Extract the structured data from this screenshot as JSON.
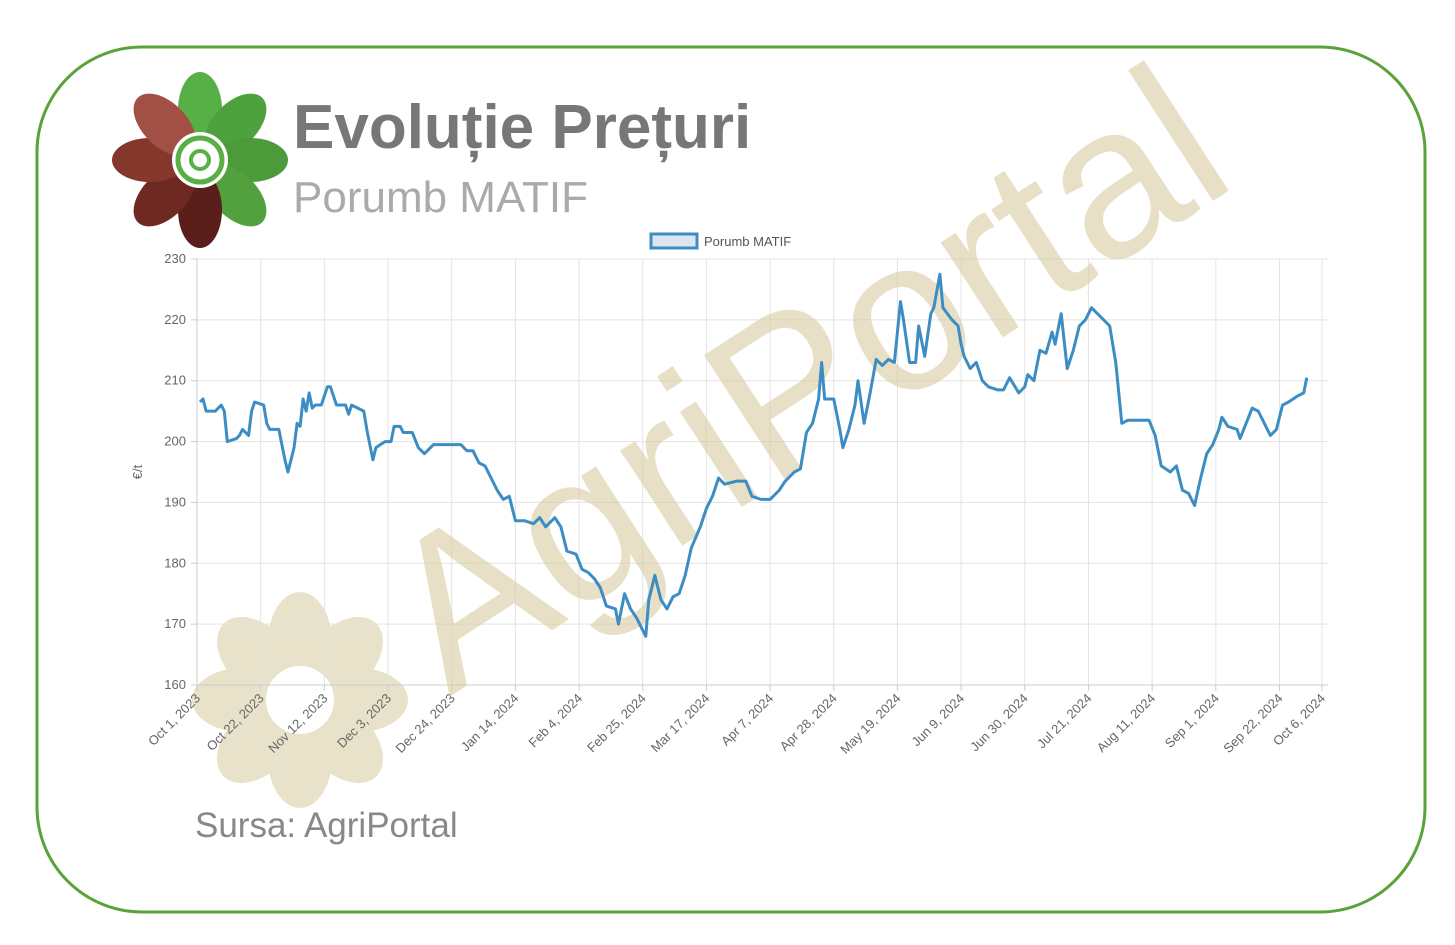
{
  "header": {
    "title": "Evoluție Prețuri",
    "subtitle": "Porumb MATIF"
  },
  "watermark": "AgriPortal",
  "source": "Sursa: AgriPortal",
  "chart_data": {
    "type": "line",
    "y_label": "€/t",
    "grid": true,
    "legend": "top",
    "xlim": [
      "2023-10-01",
      "2024-10-08"
    ],
    "ylim": [
      160,
      230
    ],
    "yticks": [
      160,
      170,
      180,
      190,
      200,
      210,
      220,
      230
    ],
    "xticks": [
      {
        "value": "2023-10-01",
        "label": "Oct 1, 2023"
      },
      {
        "value": "2023-10-22",
        "label": "Oct 22, 2023"
      },
      {
        "value": "2023-11-12",
        "label": "Nov 12, 2023"
      },
      {
        "value": "2023-12-03",
        "label": "Dec 3, 2023"
      },
      {
        "value": "2023-12-24",
        "label": "Dec 24, 2023"
      },
      {
        "value": "2024-01-14",
        "label": "Jan 14, 2024"
      },
      {
        "value": "2024-02-04",
        "label": "Feb 4, 2024"
      },
      {
        "value": "2024-02-25",
        "label": "Feb 25, 2024"
      },
      {
        "value": "2024-03-17",
        "label": "Mar 17, 2024"
      },
      {
        "value": "2024-04-07",
        "label": "Apr 7, 2024"
      },
      {
        "value": "2024-04-28",
        "label": "Apr 28, 2024"
      },
      {
        "value": "2024-05-19",
        "label": "May 19, 2024"
      },
      {
        "value": "2024-06-09",
        "label": "Jun 9, 2024"
      },
      {
        "value": "2024-06-30",
        "label": "Jun 30, 2024"
      },
      {
        "value": "2024-07-21",
        "label": "Jul 21, 2024"
      },
      {
        "value": "2024-08-11",
        "label": "Aug 11, 2024"
      },
      {
        "value": "2024-09-01",
        "label": "Sep 1, 2024"
      },
      {
        "value": "2024-09-22",
        "label": "Sep 22, 2024"
      },
      {
        "value": "2024-10-06",
        "label": "Oct 6, 2024"
      }
    ],
    "x": [
      "2023-10-02",
      "2023-10-03",
      "2023-10-04",
      "2023-10-07",
      "2023-10-09",
      "2023-10-10",
      "2023-10-11",
      "2023-10-14",
      "2023-10-15",
      "2023-10-16",
      "2023-10-18",
      "2023-10-19",
      "2023-10-20",
      "2023-10-23",
      "2023-10-24",
      "2023-10-25",
      "2023-10-28",
      "2023-10-30",
      "2023-10-31",
      "2023-11-02",
      "2023-11-03",
      "2023-11-04",
      "2023-11-05",
      "2023-11-06",
      "2023-11-07",
      "2023-11-08",
      "2023-11-09",
      "2023-11-11",
      "2023-11-13",
      "2023-11-14",
      "2023-11-16",
      "2023-11-19",
      "2023-11-20",
      "2023-11-21",
      "2023-11-23",
      "2023-11-25",
      "2023-11-26",
      "2023-11-28",
      "2023-11-29",
      "2023-12-02",
      "2023-12-04",
      "2023-12-05",
      "2023-12-07",
      "2023-12-08",
      "2023-12-11",
      "2023-12-13",
      "2023-12-15",
      "2023-12-18",
      "2023-12-22",
      "2023-12-27",
      "2023-12-29",
      "2023-12-31",
      "2024-01-02",
      "2024-01-04",
      "2024-01-06",
      "2024-01-08",
      "2024-01-10",
      "2024-01-12",
      "2024-01-14",
      "2024-01-17",
      "2024-01-20",
      "2024-01-22",
      "2024-01-24",
      "2024-01-27",
      "2024-01-29",
      "2024-01-31",
      "2024-02-03",
      "2024-02-05",
      "2024-02-07",
      "2024-02-09",
      "2024-02-11",
      "2024-02-13",
      "2024-02-16",
      "2024-02-17",
      "2024-02-19",
      "2024-02-21",
      "2024-02-23",
      "2024-02-26",
      "2024-02-27",
      "2024-02-29",
      "2024-03-02",
      "2024-03-04",
      "2024-03-06",
      "2024-03-08",
      "2024-03-10",
      "2024-03-12",
      "2024-03-15",
      "2024-03-17",
      "2024-03-19",
      "2024-03-21",
      "2024-03-23",
      "2024-03-27",
      "2024-03-30",
      "2024-04-01",
      "2024-04-04",
      "2024-04-07",
      "2024-04-10",
      "2024-04-12",
      "2024-04-15",
      "2024-04-17",
      "2024-04-19",
      "2024-04-21",
      "2024-04-23",
      "2024-04-24",
      "2024-04-25",
      "2024-04-28",
      "2024-04-30",
      "2024-05-01",
      "2024-05-03",
      "2024-05-05",
      "2024-05-06",
      "2024-05-08",
      "2024-05-10",
      "2024-05-12",
      "2024-05-14",
      "2024-05-16",
      "2024-05-18",
      "2024-05-20",
      "2024-05-21",
      "2024-05-23",
      "2024-05-25",
      "2024-05-26",
      "2024-05-28",
      "2024-05-30",
      "2024-05-31",
      "2024-06-02",
      "2024-06-03",
      "2024-06-06",
      "2024-06-08",
      "2024-06-09",
      "2024-06-10",
      "2024-06-12",
      "2024-06-14",
      "2024-06-16",
      "2024-06-18",
      "2024-06-21",
      "2024-06-23",
      "2024-06-25",
      "2024-06-28",
      "2024-06-30",
      "2024-07-01",
      "2024-07-03",
      "2024-07-05",
      "2024-07-07",
      "2024-07-09",
      "2024-07-10",
      "2024-07-12",
      "2024-07-14",
      "2024-07-16",
      "2024-07-18",
      "2024-07-20",
      "2024-07-22",
      "2024-07-24",
      "2024-07-26",
      "2024-07-28",
      "2024-07-30",
      "2024-08-01",
      "2024-08-03",
      "2024-08-07",
      "2024-08-10",
      "2024-08-12",
      "2024-08-14",
      "2024-08-17",
      "2024-08-19",
      "2024-08-21",
      "2024-08-23",
      "2024-08-25",
      "2024-08-27",
      "2024-08-29",
      "2024-08-31",
      "2024-09-02",
      "2024-09-03",
      "2024-09-05",
      "2024-09-08",
      "2024-09-09",
      "2024-09-11",
      "2024-09-13",
      "2024-09-15",
      "2024-09-18",
      "2024-09-19",
      "2024-09-21",
      "2024-09-23",
      "2024-09-25",
      "2024-09-28",
      "2024-09-30",
      "2024-10-01"
    ],
    "series": [
      {
        "name": "Porumb MATIF",
        "color": "#3c8dc4",
        "values": [
          206.5,
          207,
          205,
          205,
          206,
          205,
          200,
          200.5,
          201,
          202,
          201,
          205,
          206.5,
          206,
          203,
          202,
          202,
          197,
          195,
          199,
          203,
          202.5,
          207,
          205,
          208,
          205.5,
          206,
          206,
          209,
          209,
          206,
          206,
          204.5,
          206,
          205.5,
          205,
          202,
          197,
          199,
          200,
          200,
          202.5,
          202.5,
          201.5,
          201.5,
          199,
          198,
          199.5,
          199.5,
          199.5,
          198.5,
          198.5,
          196.5,
          196,
          194,
          192,
          190.5,
          191,
          187,
          187,
          186.5,
          187.5,
          186,
          187.5,
          186,
          182,
          181.5,
          179,
          178.5,
          177.5,
          176,
          173,
          172.5,
          170,
          175,
          172.5,
          171,
          168,
          174,
          178,
          174,
          172.5,
          174.5,
          175,
          178,
          182.5,
          186,
          189,
          191,
          194,
          193,
          193.5,
          193.5,
          191,
          190.5,
          190.5,
          192,
          193.5,
          195,
          195.5,
          201.5,
          203,
          207,
          213,
          207,
          207,
          202,
          199,
          202,
          206,
          210,
          203,
          208,
          213.5,
          212.5,
          213.5,
          213,
          223,
          220,
          213,
          213,
          219,
          214,
          221,
          222,
          227.5,
          222,
          220,
          219,
          216,
          214,
          212,
          213,
          210,
          209,
          208.5,
          208.5,
          210.5,
          208,
          209,
          211,
          210,
          215,
          214.5,
          218,
          216,
          221,
          212,
          215,
          219,
          220,
          222,
          221,
          220,
          219,
          213,
          203,
          203.5,
          203.5,
          203.5,
          201,
          196,
          195,
          196,
          192,
          191.5,
          189.5,
          194,
          198,
          199.5,
          202,
          204,
          202.5,
          202,
          200.5,
          203,
          205.5,
          205,
          202,
          201,
          202,
          206,
          206.5,
          207.5,
          208,
          210.5
        ]
      }
    ]
  }
}
